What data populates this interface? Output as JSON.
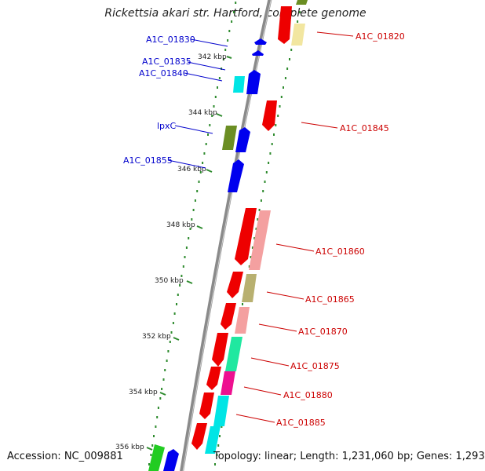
{
  "title": "Rickettsia akari str. Hartford, complete genome",
  "footer": {
    "accession": "Accession: NC_009881",
    "topology": "Topology: linear; Length: 1,231,060 bp; Genes: 1,293"
  },
  "colors": {
    "backbone": "#8a8a8a",
    "tick_dots": "#2e8b2e",
    "left_label": "#0000cc",
    "right_label": "#cc0000",
    "kbp_label": "#222222"
  },
  "kbp_ticks": [
    "342 kbp",
    "344 kbp",
    "346 kbp",
    "348 kbp",
    "350 kbp",
    "352 kbp",
    "354 kbp",
    "356 kbp"
  ],
  "genes_left": [
    {
      "label": "A1C_01830",
      "color": "#0000ee"
    },
    {
      "label": "A1C_01835",
      "color": "#0000ee"
    },
    {
      "label": "A1C_01840",
      "color": "#0000ee"
    },
    {
      "label": "lpxC",
      "color": "#0000ee"
    },
    {
      "label": "A1C_01855",
      "color": "#0000ee"
    }
  ],
  "genes_right": [
    {
      "label": "A1C_01820",
      "color": "#ee0000"
    },
    {
      "label": "A1C_01845",
      "color": "#ee0000"
    },
    {
      "label": "A1C_01860",
      "color": "#ee0000"
    },
    {
      "label": "A1C_01865",
      "color": "#ee0000"
    },
    {
      "label": "A1C_01870",
      "color": "#ee0000"
    },
    {
      "label": "A1C_01875",
      "color": "#ee0000"
    },
    {
      "label": "A1C_01880",
      "color": "#ee0000"
    },
    {
      "label": "A1C_01885",
      "color": "#ee0000"
    }
  ],
  "category_colors": [
    "#6b8e23",
    "#00e5e5",
    "#f4a0a0",
    "#b8b070",
    "#20e8a0",
    "#ee1090",
    "#f2e6a0",
    "#22cc22",
    "#0000ee"
  ]
}
